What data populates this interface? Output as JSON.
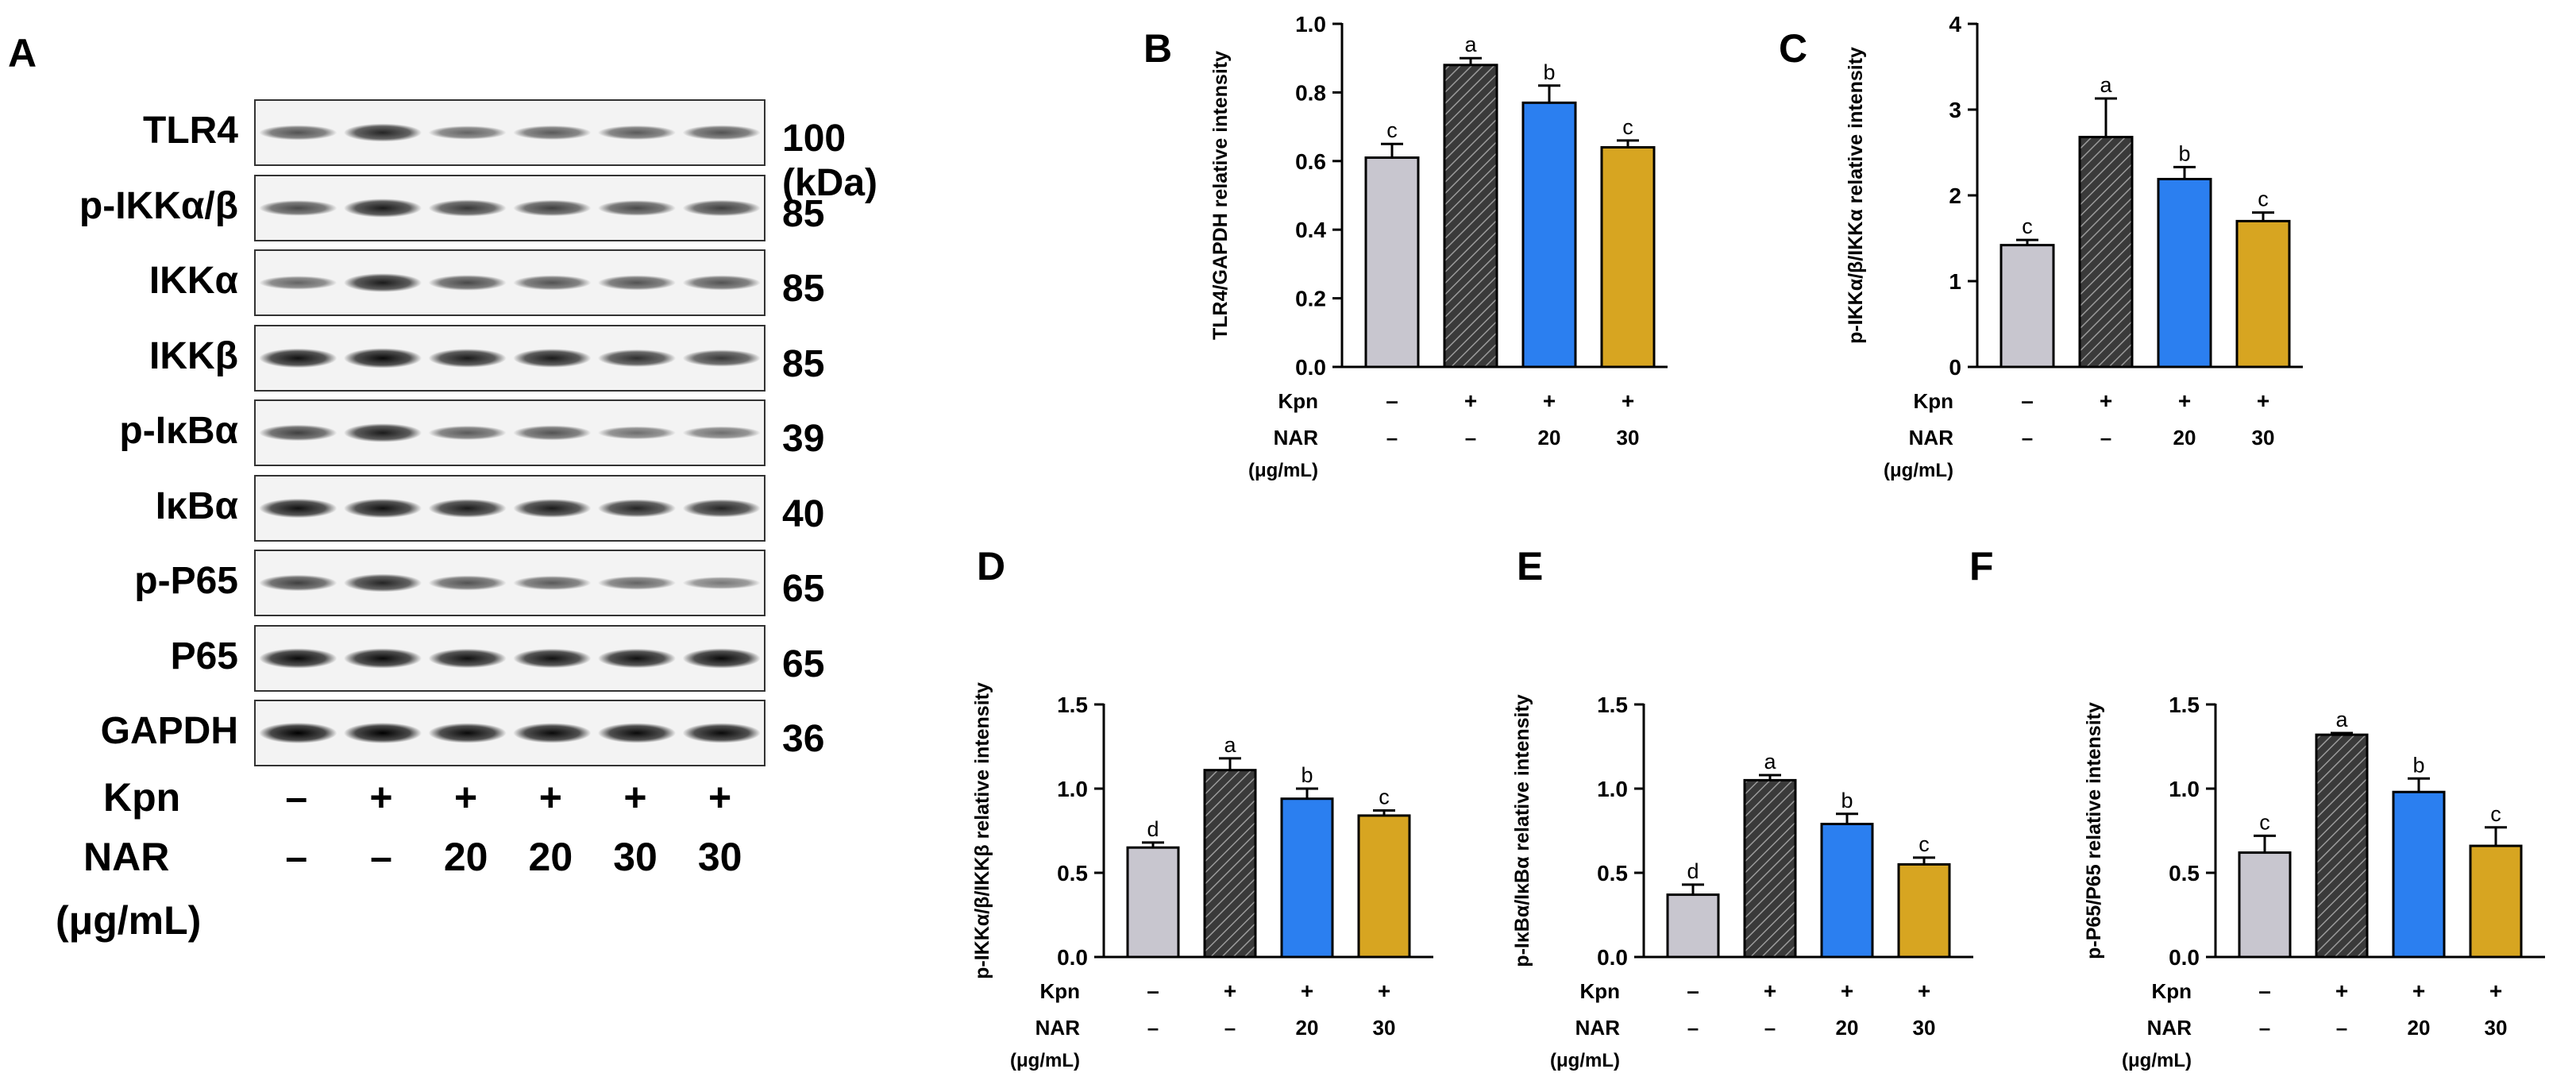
{
  "figure": {
    "blot": {
      "panel_letter": "A",
      "bands": [
        {
          "name": "TLR4",
          "kda": "100 (kDa)",
          "intensity": [
            0.55,
            0.8,
            0.45,
            0.5,
            0.5,
            0.55
          ]
        },
        {
          "name": "p-IKKα/β",
          "kda": "85",
          "intensity": [
            0.6,
            0.85,
            0.7,
            0.65,
            0.6,
            0.65
          ]
        },
        {
          "name": "IKKα",
          "kda": "85",
          "intensity": [
            0.45,
            0.85,
            0.6,
            0.55,
            0.55,
            0.55
          ]
        },
        {
          "name": "IKKβ",
          "kda": "85",
          "intensity": [
            0.9,
            0.95,
            0.85,
            0.85,
            0.75,
            0.7
          ]
        },
        {
          "name": "p-IκBα",
          "kda": "39",
          "intensity": [
            0.65,
            0.85,
            0.5,
            0.55,
            0.4,
            0.4
          ]
        },
        {
          "name": "IκBα",
          "kda": "40",
          "intensity": [
            0.9,
            0.9,
            0.85,
            0.85,
            0.8,
            0.8
          ]
        },
        {
          "name": "p-P65",
          "kda": "65",
          "intensity": [
            0.65,
            0.8,
            0.55,
            0.5,
            0.45,
            0.35
          ]
        },
        {
          "name": "P65",
          "kda": "65",
          "intensity": [
            0.95,
            0.95,
            0.9,
            0.9,
            0.9,
            0.95
          ]
        },
        {
          "name": "GAPDH",
          "kda": "36",
          "intensity": [
            1.0,
            1.0,
            0.95,
            0.95,
            0.95,
            0.95
          ]
        }
      ],
      "treatments": {
        "kpn_label": "Kpn",
        "kpn": [
          "–",
          "+",
          "+",
          "+",
          "+",
          "+"
        ],
        "nar_label": "NAR",
        "nar_unit": "(μg/mL)",
        "nar": [
          "–",
          "–",
          "20",
          "20",
          "30",
          "30"
        ]
      }
    },
    "colors": {
      "control": "#c8c6cf",
      "kpn": "#3a3a3a",
      "nar20": "#2b7ff0",
      "nar30": "#d7a521",
      "axis": "#000000"
    }
  },
  "chart_data": [
    {
      "panel": "B",
      "type": "bar",
      "ylabel": "TLR4/GAPDH relative intensity",
      "ylim": [
        0,
        1.0
      ],
      "yticks": [
        "0.0",
        "0.2",
        "0.4",
        "0.6",
        "0.8",
        "1.0"
      ],
      "ytick_values": [
        0,
        0.2,
        0.4,
        0.6,
        0.8,
        1.0
      ],
      "values": [
        0.61,
        0.88,
        0.77,
        0.64
      ],
      "errors": [
        0.04,
        0.02,
        0.05,
        0.02
      ],
      "letters": [
        "c",
        "a",
        "b",
        "c"
      ],
      "kpn_label": "Kpn",
      "kpn": [
        "–",
        "+",
        "+",
        "+"
      ],
      "nar_label": "NAR",
      "nar_unit": "(μg/mL)",
      "nar": [
        "–",
        "–",
        "20",
        "30"
      ]
    },
    {
      "panel": "C",
      "type": "bar",
      "ylabel": "p-IKKα/β/IKKα relative intensity",
      "ylim": [
        0,
        4
      ],
      "yticks": [
        "0",
        "1",
        "2",
        "3",
        "4"
      ],
      "ytick_values": [
        0,
        1,
        2,
        3,
        4
      ],
      "values": [
        1.42,
        2.68,
        2.19,
        1.7
      ],
      "errors": [
        0.06,
        0.45,
        0.14,
        0.1
      ],
      "letters": [
        "c",
        "a",
        "b",
        "c"
      ],
      "kpn_label": "Kpn",
      "kpn": [
        "–",
        "+",
        "+",
        "+"
      ],
      "nar_label": "NAR",
      "nar_unit": "(μg/mL)",
      "nar": [
        "–",
        "–",
        "20",
        "30"
      ]
    },
    {
      "panel": "D",
      "type": "bar",
      "ylabel": "p-IKKα/β/IKKβ relative intensity",
      "ylim": [
        0,
        1.5
      ],
      "yticks": [
        "0.0",
        "0.5",
        "1.0",
        "1.5"
      ],
      "ytick_values": [
        0,
        0.5,
        1.0,
        1.5
      ],
      "values": [
        0.65,
        1.11,
        0.94,
        0.84
      ],
      "errors": [
        0.03,
        0.07,
        0.06,
        0.03
      ],
      "letters": [
        "d",
        "a",
        "b",
        "c"
      ],
      "kpn_label": "Kpn",
      "kpn": [
        "–",
        "+",
        "+",
        "+"
      ],
      "nar_label": "NAR",
      "nar_unit": "(μg/mL)",
      "nar": [
        "–",
        "–",
        "20",
        "30"
      ]
    },
    {
      "panel": "E",
      "type": "bar",
      "ylabel": "p-IκBα/IκBα relative intensity",
      "ylim": [
        0,
        1.5
      ],
      "yticks": [
        "0.0",
        "0.5",
        "1.0",
        "1.5"
      ],
      "ytick_values": [
        0,
        0.5,
        1.0,
        1.5
      ],
      "values": [
        0.37,
        1.05,
        0.79,
        0.55
      ],
      "errors": [
        0.06,
        0.03,
        0.06,
        0.04
      ],
      "letters": [
        "d",
        "a",
        "b",
        "c"
      ],
      "kpn_label": "Kpn",
      "kpn": [
        "–",
        "+",
        "+",
        "+"
      ],
      "nar_label": "NAR",
      "nar_unit": "(μg/mL)",
      "nar": [
        "–",
        "–",
        "20",
        "30"
      ]
    },
    {
      "panel": "F",
      "type": "bar",
      "ylabel": "p-P65/P65 relative intensity",
      "ylim": [
        0,
        1.5
      ],
      "yticks": [
        "0.0",
        "0.5",
        "1.0",
        "1.5"
      ],
      "ytick_values": [
        0,
        0.5,
        1.0,
        1.5
      ],
      "values": [
        0.62,
        1.32,
        0.98,
        0.66
      ],
      "errors": [
        0.1,
        0.01,
        0.08,
        0.11
      ],
      "letters": [
        "c",
        "a",
        "b",
        "c"
      ],
      "kpn_label": "Kpn",
      "kpn": [
        "–",
        "+",
        "+",
        "+"
      ],
      "nar_label": "NAR",
      "nar_unit": "(μg/mL)",
      "nar": [
        "–",
        "–",
        "20",
        "30"
      ]
    }
  ]
}
